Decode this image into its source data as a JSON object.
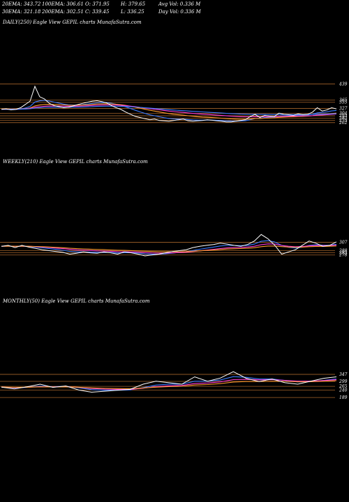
{
  "header": {
    "row1": [
      "20EMA: 343.72",
      "100EMA: 306.61",
      "O: 371.95",
      "H: 379.65",
      "Avg Vol: 0.336  M"
    ],
    "row2": [
      "30EMA: 321.18",
      "200EMA: 302.51",
      "C: 339.45",
      "L: 336.25",
      "Day Vol: 0.336  M"
    ]
  },
  "colors": {
    "background": "#000000",
    "price": "#ffffff",
    "ema_blue": "#3a7bff",
    "ema_pink": "#ff3bd6",
    "ema_orange": "#ff9a2e",
    "level_line": "#a5642a"
  },
  "chart_data": [
    {
      "type": "line",
      "title": "DAILY(250) Eagle   View  GEPIL  charts MunafaSutra.com",
      "levels": [
        "439",
        "365",
        "355",
        "327",
        "304",
        "293",
        "282",
        "273",
        "262"
      ],
      "series": [
        {
          "values": [
            323,
            325,
            320,
            322,
            330,
            345,
            360,
            428,
            380,
            370,
            350,
            340,
            335,
            330,
            332,
            338,
            345,
            350,
            355,
            360,
            362,
            358,
            352,
            340,
            330,
            322,
            310,
            300,
            290,
            285,
            280,
            275,
            278,
            272,
            270,
            268,
            272,
            275,
            278,
            270,
            268,
            270,
            272,
            275,
            273,
            270,
            268,
            265,
            265,
            268,
            272,
            275,
            290,
            300,
            285,
            295,
            292,
            290,
            305,
            300,
            298,
            295,
            302,
            298,
            300,
            310,
            330,
            315,
            320,
            330,
            325
          ]
        }
      ]
    },
    {
      "type": "line",
      "title": "WEEKLY(210) Eagle   View  GEPIL  charts MunafaSutra.com",
      "levels": [
        "307",
        "283",
        "288",
        "278"
      ],
      "series": [
        {
          "values": [
            298,
            300,
            295,
            300,
            296,
            293,
            290,
            288,
            286,
            284,
            280,
            282,
            285,
            283,
            282,
            285,
            283,
            280,
            285,
            283,
            280,
            276,
            278,
            280,
            283,
            286,
            288,
            290,
            295,
            298,
            300,
            302,
            305,
            303,
            300,
            298,
            302,
            310,
            325,
            315,
            300,
            280,
            285,
            290,
            300,
            310,
            305,
            298,
            300,
            308
          ]
        }
      ]
    },
    {
      "type": "line",
      "title": "MONTHLY(50) Eagle   View  GEPIL  charts MunafaSutra.com",
      "levels": [
        "347",
        "299",
        "265",
        "240",
        "189"
      ],
      "series": [
        {
          "values": [
            260,
            248,
            262,
            280,
            258,
            268,
            240,
            225,
            232,
            238,
            245,
            280,
            300,
            290,
            280,
            330,
            300,
            322,
            365,
            320,
            298,
            315,
            290,
            280,
            300,
            320,
            330
          ]
        }
      ]
    }
  ]
}
